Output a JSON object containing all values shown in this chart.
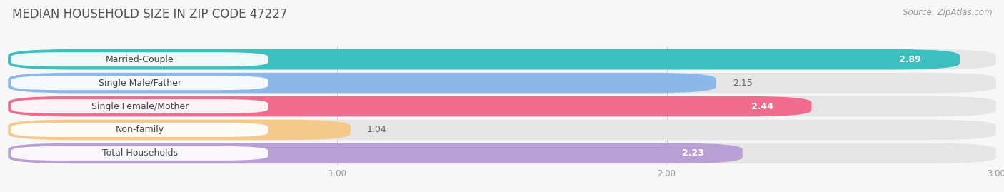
{
  "title": "MEDIAN HOUSEHOLD SIZE IN ZIP CODE 47227",
  "source": "Source: ZipAtlas.com",
  "categories": [
    "Married-Couple",
    "Single Male/Father",
    "Single Female/Mother",
    "Non-family",
    "Total Households"
  ],
  "values": [
    2.89,
    2.15,
    2.44,
    1.04,
    2.23
  ],
  "bar_colors": [
    "#3bbfbf",
    "#8ab8e8",
    "#f06c8e",
    "#f5c98a",
    "#b89fd4"
  ],
  "value_inside": [
    true,
    false,
    true,
    false,
    true
  ],
  "background_color": "#f7f7f7",
  "bar_bg_color": "#e5e5e5",
  "xlim_min": 0.0,
  "xlim_max": 3.0,
  "xticks": [
    1.0,
    2.0,
    3.0
  ],
  "title_fontsize": 12,
  "source_fontsize": 8.5,
  "label_fontsize": 9,
  "value_fontsize": 9,
  "bar_height": 0.65,
  "bar_gap": 0.1
}
